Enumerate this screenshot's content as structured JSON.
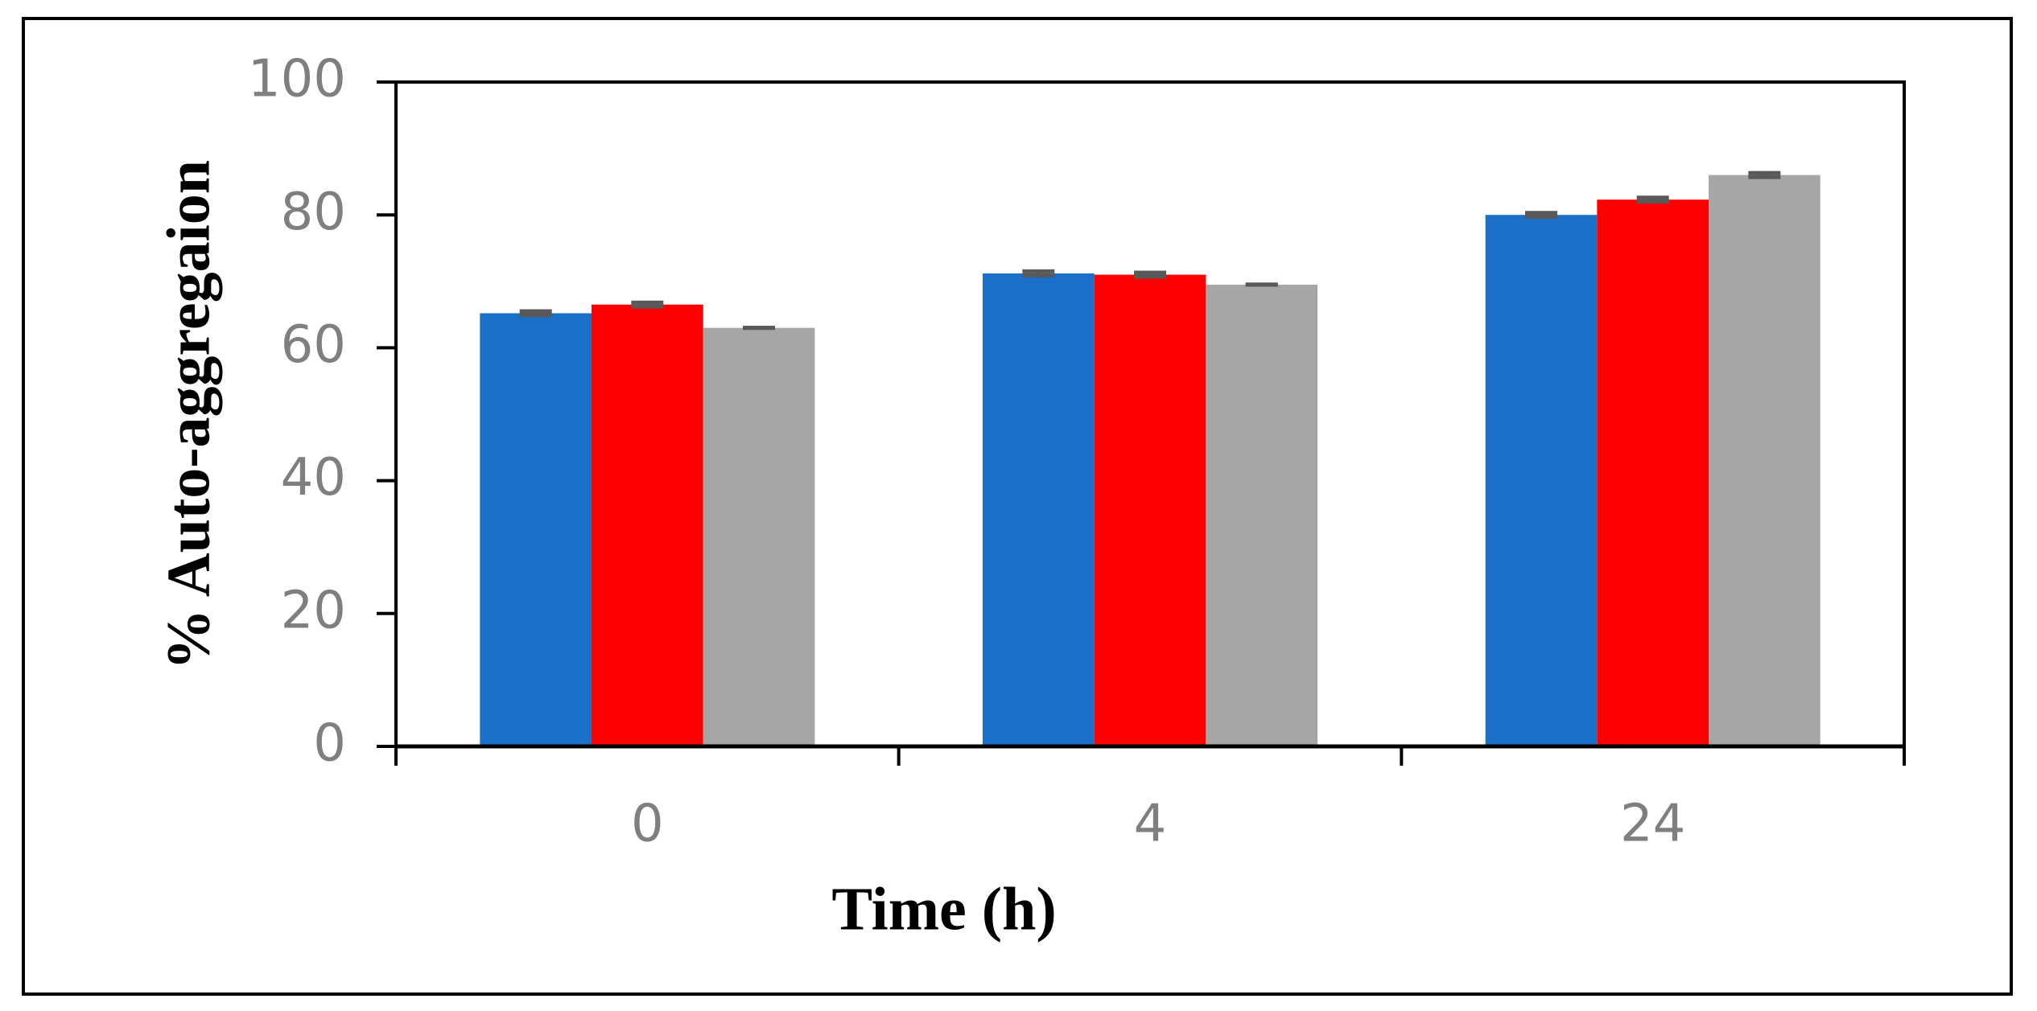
{
  "chart_data": {
    "type": "bar",
    "x_label": "Time (h)",
    "y_label": "% Auto-aggregaion",
    "categories": [
      "0",
      "4",
      "24"
    ],
    "series": [
      {
        "color": "#1a70c8",
        "values": [
          65.2,
          71.2,
          80.0
        ],
        "errors": [
          0.3,
          0.3,
          0.3
        ]
      },
      {
        "color": "#ff0000",
        "values": [
          66.5,
          71.0,
          82.3
        ],
        "errors": [
          0.3,
          0.3,
          0.3
        ]
      },
      {
        "color": "#a6a6a6",
        "values": [
          63.0,
          69.5,
          86.0
        ],
        "errors": [
          0,
          0,
          0.3
        ]
      }
    ],
    "ylim": [
      0,
      100
    ],
    "yticks": [
      0,
      20,
      40,
      60,
      80,
      100
    ]
  }
}
